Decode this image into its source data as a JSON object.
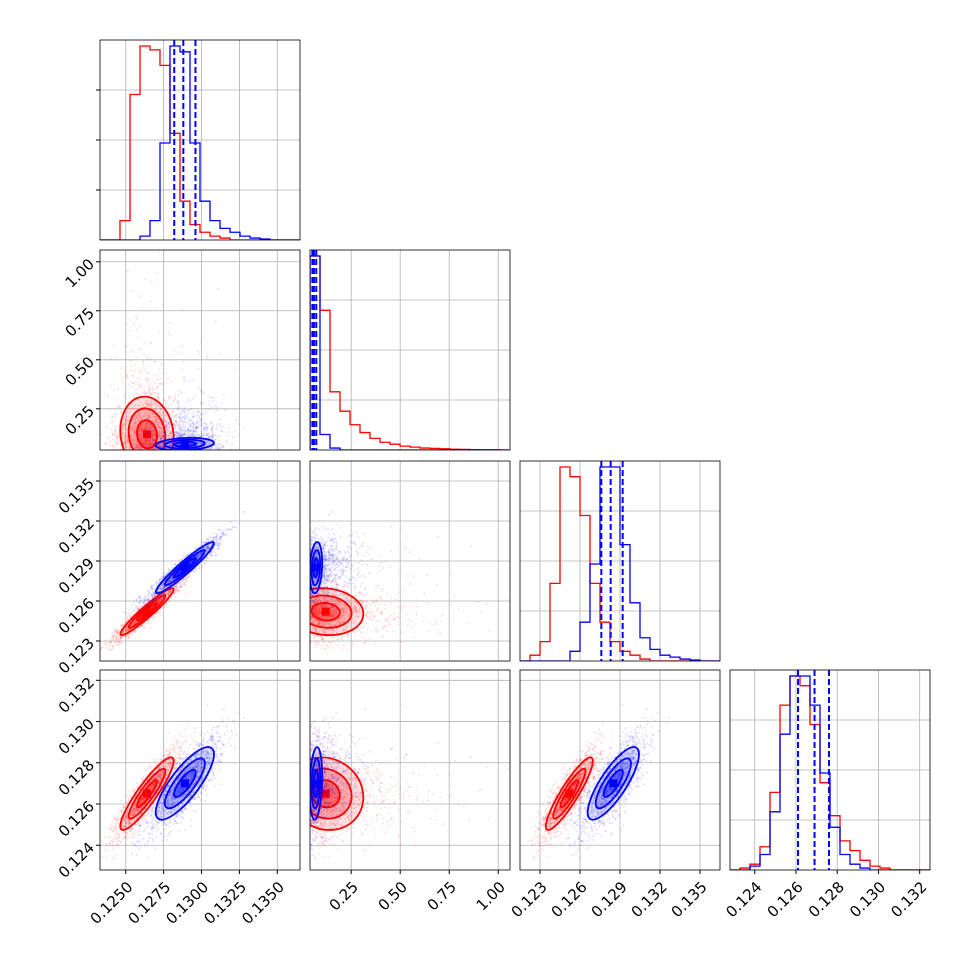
{
  "colors": {
    "series_a": "#ff0000",
    "series_b": "#0000ff",
    "grid": "#b0b0b0",
    "axis": "#000000"
  },
  "chart_data": {
    "type": "corner",
    "params": 4,
    "grid": true,
    "ranges": [
      [
        0.1233,
        0.1365
      ],
      [
        0.04,
        1.06
      ],
      [
        0.1215,
        0.1365
      ],
      [
        0.1228,
        0.1325
      ]
    ],
    "ticks": [
      {
        "values": [
          0.125,
          0.1275,
          0.13,
          0.1325,
          0.135
        ],
        "labels": [
          "0.1250",
          "0.1275",
          "0.1300",
          "0.1325",
          "0.1350"
        ]
      },
      {
        "values": [
          0.25,
          0.5,
          0.75,
          1.0
        ],
        "labels": [
          "0.25",
          "0.50",
          "0.75",
          "1.00"
        ]
      },
      {
        "values": [
          0.123,
          0.126,
          0.129,
          0.132,
          0.135
        ],
        "labels": [
          "0.123",
          "0.126",
          "0.129",
          "0.132",
          "0.135"
        ]
      },
      {
        "values": [
          0.124,
          0.126,
          0.128,
          0.13,
          0.132
        ],
        "labels": [
          "0.124",
          "0.126",
          "0.128",
          "0.130",
          "0.132"
        ]
      }
    ],
    "series": [
      {
        "color_key": "series_a",
        "mean": [
          0.1264,
          0.12,
          0.1252,
          0.1265
        ],
        "sd": [
          0.0011,
          0.12,
          0.0011,
          0.0011
        ],
        "corr": [
          [
            1,
            -0.1,
            0.95,
            0.9
          ],
          [
            -0.1,
            1,
            -0.1,
            -0.1
          ],
          [
            0.95,
            -0.1,
            1,
            0.9
          ],
          [
            0.9,
            -0.1,
            0.9,
            1
          ]
        ],
        "hist": [
          {
            "edges": [
              0.1233,
              0.1365
            ],
            "counts": [
              0,
              0,
              0.1,
              0.75,
              1.0,
              0.98,
              0.9,
              0.55,
              0.2,
              0.08,
              0.04,
              0.02,
              0.01,
              0,
              0,
              0,
              0,
              0,
              0,
              0
            ]
          },
          {
            "edges": [
              0.04,
              1.06
            ],
            "counts": [
              1.0,
              0.72,
              0.3,
              0.2,
              0.13,
              0.09,
              0.06,
              0.04,
              0.03,
              0.02,
              0.015,
              0.01,
              0.008,
              0.006,
              0.004,
              0.003,
              0.002,
              0.001,
              0.001,
              0
            ]
          },
          {
            "edges": [
              0.1215,
              0.1365
            ],
            "counts": [
              0,
              0.03,
              0.1,
              0.4,
              1.0,
              0.95,
              0.75,
              0.4,
              0.2,
              0.1,
              0.05,
              0.03,
              0.01,
              0,
              0,
              0,
              0,
              0,
              0,
              0
            ]
          },
          {
            "edges": [
              0.1228,
              0.1325
            ],
            "counts": [
              0,
              0.01,
              0.03,
              0.12,
              0.4,
              0.85,
              1.0,
              0.95,
              0.75,
              0.45,
              0.28,
              0.15,
              0.1,
              0.05,
              0.02,
              0.01,
              0,
              0,
              0,
              0
            ]
          }
        ]
      },
      {
        "color_key": "series_b",
        "mean": [
          0.1289,
          0.07,
          0.1285,
          0.127
        ],
        "sd": [
          0.0012,
          0.02,
          0.0012,
          0.0011
        ],
        "corr": [
          [
            1,
            0.2,
            0.95,
            0.8
          ],
          [
            0.2,
            1,
            0.2,
            0.2
          ],
          [
            0.95,
            0.2,
            1,
            0.8
          ],
          [
            0.8,
            0.2,
            0.8,
            1
          ]
        ],
        "quantiles": [
          [
            0.1282,
            0.1288,
            0.1296
          ],
          [
            0.052,
            0.06,
            0.072
          ],
          [
            0.1276,
            0.1283,
            0.1292
          ],
          [
            0.1261,
            0.1269,
            0.1276
          ]
        ],
        "hist": [
          {
            "edges": [
              0.1233,
              0.1365
            ],
            "counts": [
              0,
              0,
              0,
              0,
              0.02,
              0.1,
              0.5,
              1.0,
              0.97,
              0.5,
              0.2,
              0.1,
              0.06,
              0.04,
              0.02,
              0.01,
              0.005,
              0,
              0,
              0
            ]
          },
          {
            "edges": [
              0.04,
              1.06
            ],
            "counts": [
              1.0,
              0.08,
              0.01,
              0,
              0,
              0,
              0,
              0,
              0,
              0,
              0,
              0,
              0,
              0,
              0,
              0,
              0,
              0,
              0,
              0
            ]
          },
          {
            "edges": [
              0.1215,
              0.1365
            ],
            "counts": [
              0,
              0,
              0,
              0,
              0,
              0.05,
              0.2,
              0.5,
              1.0,
              1.0,
              0.6,
              0.3,
              0.12,
              0.06,
              0.03,
              0.02,
              0.01,
              0.005,
              0,
              0
            ]
          },
          {
            "edges": [
              0.1228,
              0.1325
            ],
            "counts": [
              0,
              0,
              0.02,
              0.08,
              0.3,
              0.7,
              1.0,
              1.0,
              0.85,
              0.5,
              0.22,
              0.08,
              0.03,
              0.01,
              0,
              0,
              0,
              0,
              0,
              0
            ]
          }
        ]
      }
    ]
  }
}
